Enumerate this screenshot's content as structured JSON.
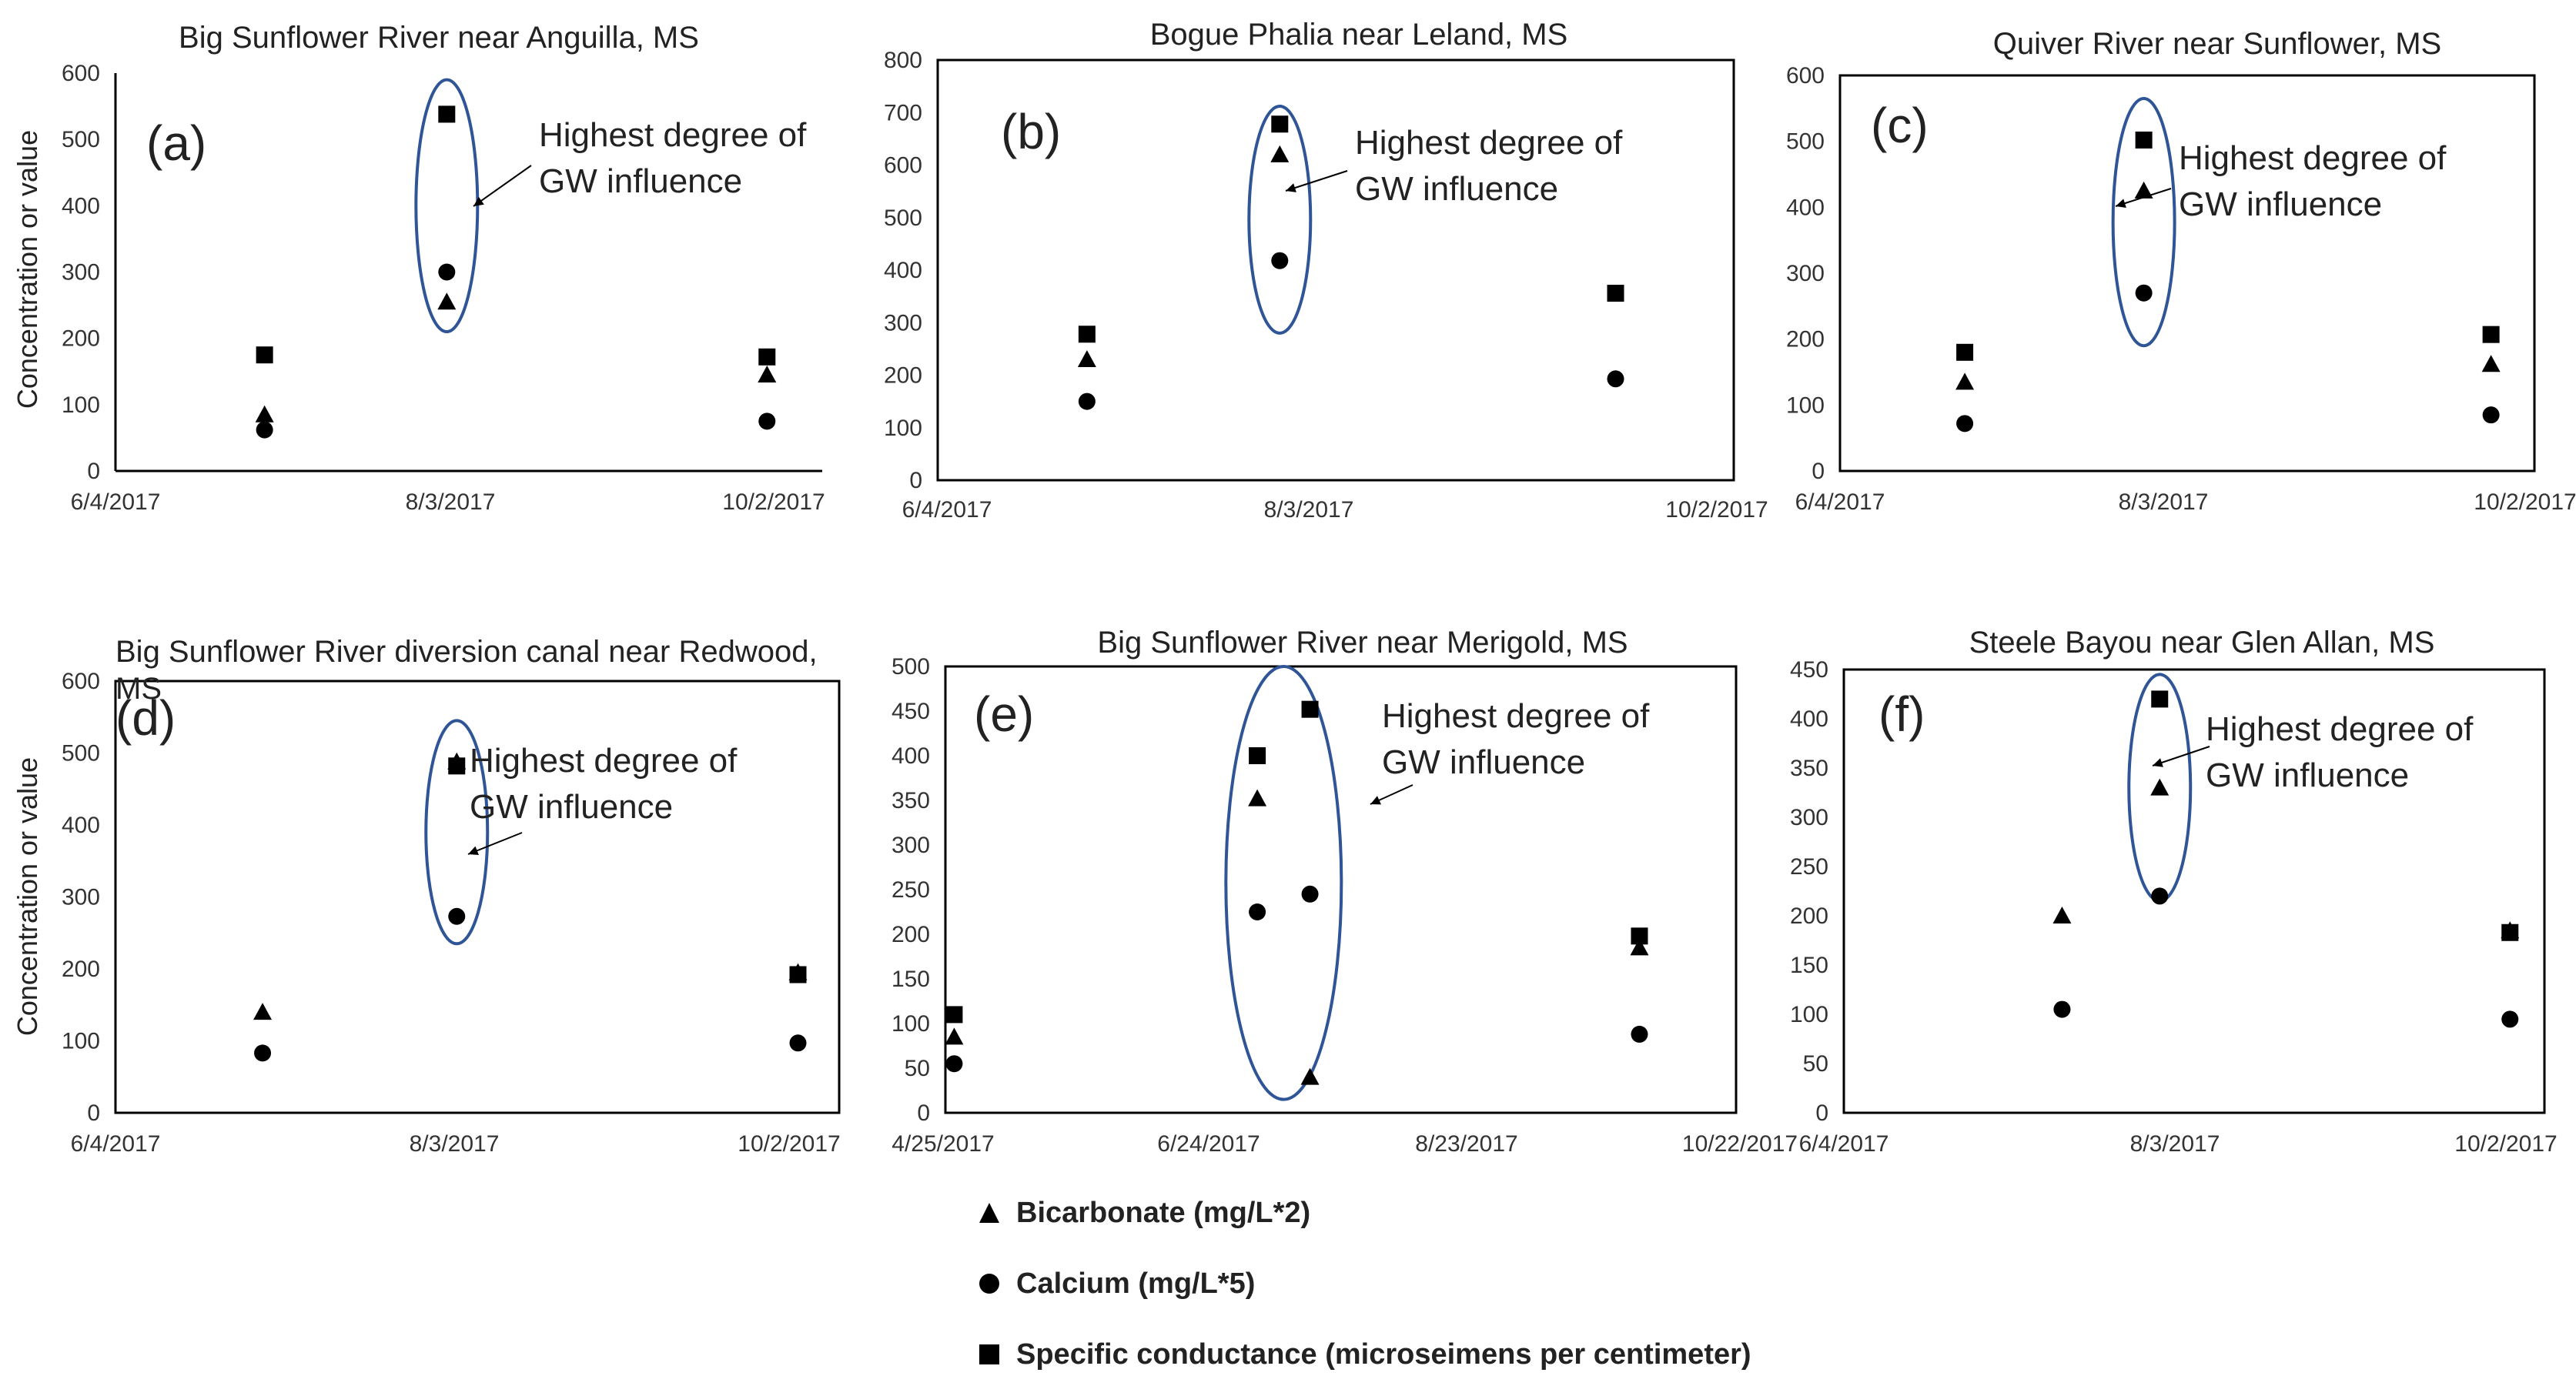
{
  "figure": {
    "y_axis_label": "Concentration or value",
    "annotation_text_line1": "Highest degree of",
    "annotation_text_line2": "GW influence"
  },
  "legend": [
    {
      "series": "bicarbonate",
      "marker": "triangle",
      "label": "Bicarbonate (mg/L*2)"
    },
    {
      "series": "calcium",
      "marker": "circle",
      "label": "Calcium (mg/L*5)"
    },
    {
      "series": "conductance",
      "marker": "square",
      "label": "Specific conductance (microseimens per centimeter)"
    }
  ],
  "colors": {
    "markers": "#000000",
    "ellipse": "#2f5597",
    "plot_border": "#000000",
    "text": "#222222",
    "tick_text": "#333333"
  },
  "chart_data": [
    {
      "id": "a",
      "panel_label": "(a)",
      "type": "scatter",
      "title": "Big Sunflower River near Anguilla, MS",
      "ylabel": "Concentration or value",
      "xlim": [
        "2017-06-04",
        "2017-10-10"
      ],
      "x_tick_labels": [
        "6/4/2017",
        "8/3/2017",
        "10/2/2017"
      ],
      "ylim": [
        0,
        600
      ],
      "yticks": [
        0,
        100,
        200,
        300,
        400,
        500,
        600
      ],
      "border": false,
      "dates": [
        "2017-07-01",
        "2017-08-03",
        "2017-09-30"
      ],
      "series": [
        {
          "name": "bicarbonate",
          "values": [
            85,
            255,
            145
          ]
        },
        {
          "name": "calcium",
          "values": [
            62,
            300,
            75
          ]
        },
        {
          "name": "conductance",
          "values": [
            175,
            538,
            172
          ]
        }
      ],
      "highlight_date": "2017-08-03",
      "highlight_range": [
        210,
        590
      ]
    },
    {
      "id": "b",
      "panel_label": "(b)",
      "type": "scatter",
      "title": "Bogue Phalia near Leland, MS",
      "ylabel": "",
      "xlim": [
        "2017-06-04",
        "2017-10-10"
      ],
      "x_tick_labels": [
        "6/4/2017",
        "8/3/2017",
        "10/2/2017"
      ],
      "ylim": [
        0,
        800
      ],
      "yticks": [
        0,
        100,
        200,
        300,
        400,
        500,
        600,
        700,
        800
      ],
      "border": true,
      "dates": [
        "2017-06-28",
        "2017-07-29",
        "2017-09-21"
      ],
      "series": [
        {
          "name": "bicarbonate",
          "values": [
            230,
            620,
            null
          ]
        },
        {
          "name": "calcium",
          "values": [
            150,
            418,
            193
          ]
        },
        {
          "name": "conductance",
          "values": [
            278,
            678,
            356
          ]
        }
      ],
      "highlight_date": "2017-07-29",
      "highlight_range": [
        280,
        712
      ]
    },
    {
      "id": "c",
      "panel_label": "(c)",
      "type": "scatter",
      "title": "Quiver River near Sunflower, MS",
      "ylabel": "",
      "xlim": [
        "2017-06-04",
        "2017-10-10"
      ],
      "x_tick_labels": [
        "6/4/2017",
        "8/3/2017",
        "10/2/2017"
      ],
      "ylim": [
        0,
        600
      ],
      "yticks": [
        0,
        100,
        200,
        300,
        400,
        500,
        600
      ],
      "border": true,
      "dates": [
        "2017-06-27",
        "2017-07-30",
        "2017-10-02"
      ],
      "series": [
        {
          "name": "bicarbonate",
          "values": [
            135,
            425,
            162
          ]
        },
        {
          "name": "calcium",
          "values": [
            72,
            270,
            85
          ]
        },
        {
          "name": "conductance",
          "values": [
            180,
            502,
            207
          ]
        }
      ],
      "highlight_date": "2017-07-30",
      "highlight_range": [
        190,
        565
      ]
    },
    {
      "id": "d",
      "panel_label": "(d)",
      "type": "scatter",
      "title": "Big Sunflower River diversion canal near Redwood, MS",
      "ylabel": "Concentration or value",
      "xlim": [
        "2017-06-04",
        "2017-10-05"
      ],
      "x_tick_labels": [
        "6/4/2017",
        "8/3/2017",
        "10/2/2017"
      ],
      "ylim": [
        0,
        600
      ],
      "yticks": [
        0,
        100,
        200,
        300,
        400,
        500,
        600
      ],
      "border": true,
      "dates": [
        "2017-06-29",
        "2017-08-01",
        "2017-09-28"
      ],
      "series": [
        {
          "name": "bicarbonate",
          "values": [
            140,
            488,
            195
          ]
        },
        {
          "name": "calcium",
          "values": [
            83,
            273,
            97
          ]
        },
        {
          "name": "conductance",
          "values": [
            null,
            482,
            192
          ]
        }
      ],
      "highlight_date": "2017-08-01",
      "highlight_range": [
        235,
        545
      ]
    },
    {
      "id": "e",
      "panel_label": "(e)",
      "type": "scatter",
      "title": "Big Sunflower River near Merigold, MS",
      "ylabel": "",
      "xlim": [
        "2017-04-25",
        "2017-10-22"
      ],
      "x_tick_labels": [
        "4/25/2017",
        "6/24/2017",
        "8/23/2017",
        "10/22/2017"
      ],
      "ylim": [
        0,
        500
      ],
      "yticks": [
        0,
        50,
        100,
        150,
        200,
        250,
        300,
        350,
        400,
        450,
        500
      ],
      "border": true,
      "dates": [
        "2017-04-27",
        "2017-07-05",
        "2017-07-17",
        "2017-09-30"
      ],
      "series": [
        {
          "name": "bicarbonate",
          "values": [
            85,
            352,
            40,
            185
          ]
        },
        {
          "name": "calcium",
          "values": [
            55,
            225,
            245,
            88
          ]
        },
        {
          "name": "conductance",
          "values": [
            110,
            400,
            452,
            198
          ]
        }
      ],
      "highlight_date": "2017-07-11",
      "highlight_range": [
        15,
        500
      ]
    },
    {
      "id": "f",
      "panel_label": "(f)",
      "type": "scatter",
      "title": "Steele Bayou near Glen Allan, MS",
      "ylabel": "",
      "xlim": [
        "2017-06-04",
        "2017-10-04"
      ],
      "x_tick_labels": [
        "6/4/2017",
        "8/3/2017",
        "10/2/2017"
      ],
      "ylim": [
        0,
        450
      ],
      "yticks": [
        0,
        50,
        100,
        150,
        200,
        250,
        300,
        350,
        400,
        450
      ],
      "border": true,
      "dates": [
        "2017-07-12",
        "2017-07-29",
        "2017-09-28"
      ],
      "series": [
        {
          "name": "bicarbonate",
          "values": [
            200,
            330,
            185
          ]
        },
        {
          "name": "calcium",
          "values": [
            105,
            220,
            95
          ]
        },
        {
          "name": "conductance",
          "values": [
            null,
            420,
            183
          ]
        }
      ],
      "highlight_date": "2017-07-29",
      "highlight_range": [
        215,
        445
      ]
    }
  ]
}
